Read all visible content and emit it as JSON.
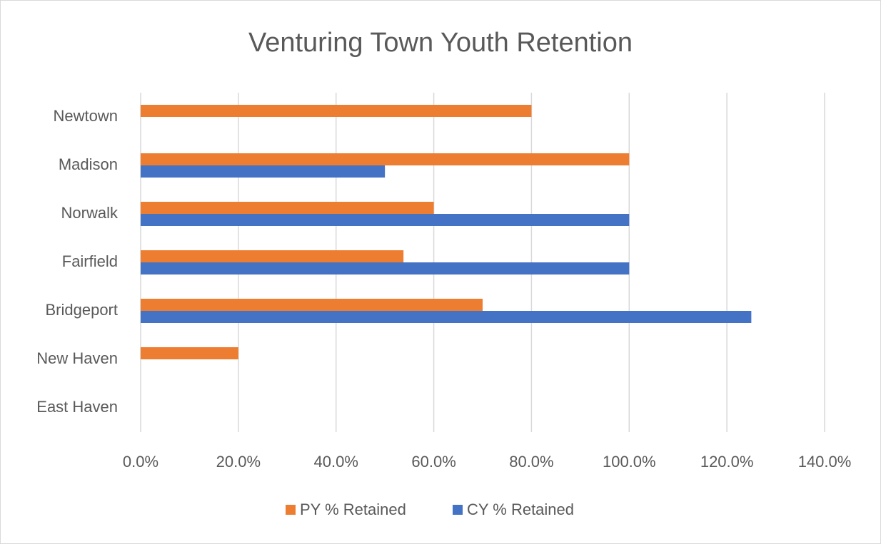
{
  "chart_data": {
    "type": "barh",
    "title": "Venturing Town Youth Retention",
    "categories": [
      "Newtown",
      "Madison",
      "Norwalk",
      "Fairfield",
      "Bridgeport",
      "New Haven",
      "East Haven"
    ],
    "series": [
      {
        "name": "PY % Retained",
        "color": "#ed7d31",
        "values": [
          80,
          100,
          60,
          53.8,
          70,
          20,
          0
        ]
      },
      {
        "name": "CY % Retained",
        "color": "#4472c4",
        "values": [
          0,
          50,
          100,
          100,
          125,
          0,
          0
        ]
      }
    ],
    "xlim": [
      0,
      140
    ],
    "xticks": [
      {
        "value": 0,
        "label": "0.0%"
      },
      {
        "value": 20,
        "label": "20.0%"
      },
      {
        "value": 40,
        "label": "40.0%"
      },
      {
        "value": 60,
        "label": "60.0%"
      },
      {
        "value": 80,
        "label": "80.0%"
      },
      {
        "value": 100,
        "label": "100.0%"
      },
      {
        "value": 120,
        "label": "120.0%"
      },
      {
        "value": 140,
        "label": "140.0%"
      }
    ],
    "grid": true,
    "legend": "bottom"
  }
}
